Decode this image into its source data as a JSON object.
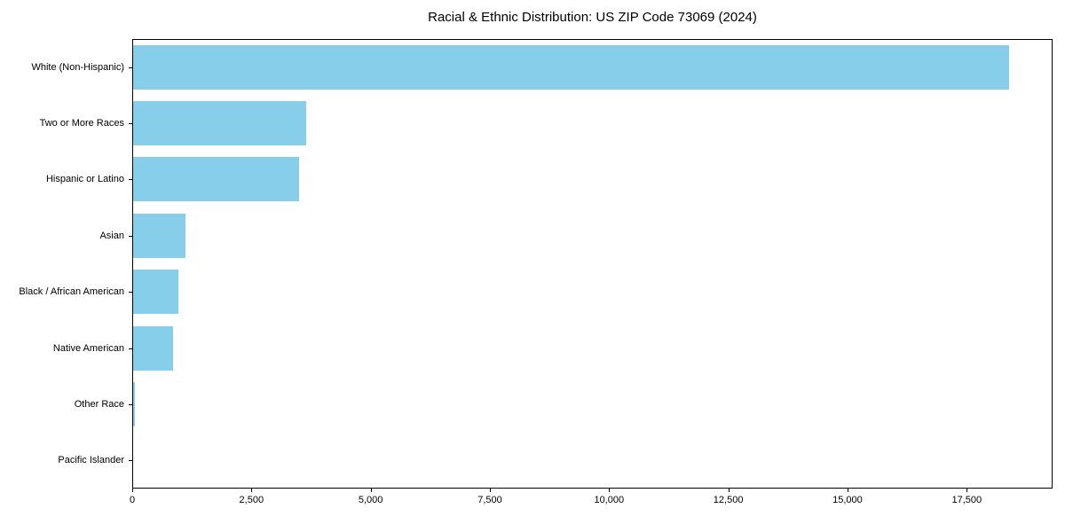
{
  "page": {
    "background": "#ffffff",
    "text_color": "#000000",
    "frame_color": "#000000"
  },
  "chart_data": {
    "type": "bar",
    "orientation": "horizontal",
    "title": "Racial & Ethnic Distribution: US ZIP Code 73069 (2024)",
    "categories": [
      "White (Non-Hispanic)",
      "Two or More Races",
      "Hispanic or Latino",
      "Asian",
      "Black / African American",
      "Native American",
      "Other Race",
      "Pacific Islander"
    ],
    "values": [
      18390,
      3640,
      3490,
      1120,
      970,
      860,
      60,
      10
    ],
    "bar_color": "#87CEEB",
    "xlabel": "",
    "ylabel": "",
    "xlim": [
      0,
      19300
    ],
    "x_ticks": [
      0,
      2500,
      5000,
      7500,
      10000,
      12500,
      15000,
      17500
    ],
    "x_tick_labels": [
      "0",
      "2,500",
      "5,000",
      "7,500",
      "10,000",
      "12,500",
      "15,000",
      "17,500"
    ],
    "grid": false,
    "legend": "none"
  }
}
